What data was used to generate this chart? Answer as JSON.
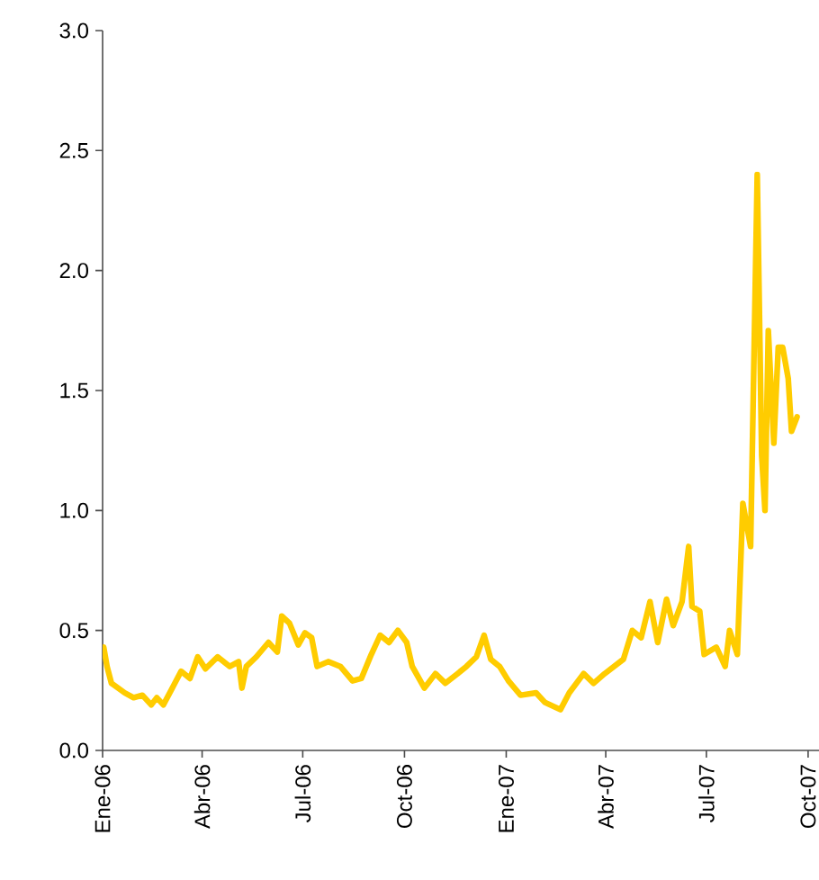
{
  "chart_data": {
    "type": "line",
    "x": [
      "2006-01-02",
      "2006-01-05",
      "2006-01-09",
      "2006-01-21",
      "2006-01-29",
      "2006-02-06",
      "2006-02-14",
      "2006-02-19",
      "2006-02-25",
      "2006-03-05",
      "2006-03-13",
      "2006-03-21",
      "2006-03-28",
      "2006-04-04",
      "2006-04-15",
      "2006-04-26",
      "2006-05-04",
      "2006-05-07",
      "2006-05-11",
      "2006-05-20",
      "2006-05-31",
      "2006-06-08",
      "2006-06-12",
      "2006-06-19",
      "2006-06-27",
      "2006-07-03",
      "2006-07-09",
      "2006-07-14",
      "2006-07-24",
      "2006-08-04",
      "2006-08-15",
      "2006-08-23",
      "2006-09-01",
      "2006-09-09",
      "2006-09-17",
      "2006-09-25",
      "2006-10-03",
      "2006-10-08",
      "2006-10-19",
      "2006-10-29",
      "2006-11-07",
      "2006-11-18",
      "2006-11-26",
      "2006-12-05",
      "2006-12-12",
      "2006-12-18",
      "2006-12-26",
      "2007-01-03",
      "2007-01-14",
      "2007-01-28",
      "2007-02-05",
      "2007-02-19",
      "2007-02-27",
      "2007-03-12",
      "2007-03-21",
      "2007-03-31",
      "2007-04-17",
      "2007-04-25",
      "2007-05-03",
      "2007-05-11",
      "2007-05-18",
      "2007-05-26",
      "2007-06-01",
      "2007-06-09",
      "2007-06-15",
      "2007-06-18",
      "2007-06-25",
      "2007-06-29",
      "2007-07-10",
      "2007-07-18",
      "2007-07-22",
      "2007-07-29",
      "2007-08-03",
      "2007-08-10",
      "2007-08-16",
      "2007-08-20",
      "2007-08-23",
      "2007-08-26",
      "2007-08-31",
      "2007-09-04",
      "2007-09-08",
      "2007-09-13",
      "2007-09-16",
      "2007-09-21"
    ],
    "series": [
      {
        "color": "#ffcc00",
        "values": [
          0.43,
          0.35,
          0.28,
          0.24,
          0.22,
          0.23,
          0.19,
          0.22,
          0.19,
          0.26,
          0.33,
          0.3,
          0.39,
          0.34,
          0.39,
          0.35,
          0.37,
          0.26,
          0.35,
          0.39,
          0.45,
          0.41,
          0.56,
          0.53,
          0.44,
          0.49,
          0.47,
          0.35,
          0.37,
          0.35,
          0.29,
          0.3,
          0.4,
          0.48,
          0.45,
          0.5,
          0.45,
          0.35,
          0.26,
          0.32,
          0.28,
          0.32,
          0.35,
          0.39,
          0.48,
          0.38,
          0.35,
          0.29,
          0.23,
          0.24,
          0.2,
          0.17,
          0.24,
          0.32,
          0.28,
          0.32,
          0.38,
          0.5,
          0.47,
          0.62,
          0.45,
          0.63,
          0.52,
          0.62,
          0.85,
          0.6,
          0.58,
          0.4,
          0.43,
          0.35,
          0.5,
          0.4,
          1.03,
          0.85,
          2.4,
          1.23,
          1.0,
          1.75,
          1.28,
          1.68,
          1.68,
          1.55,
          1.33,
          1.39
        ]
      }
    ],
    "xlim": [
      "2006-01-01",
      "2007-10-19"
    ],
    "xticks": [
      {
        "value": "2006-01-01",
        "label": "Ene-06"
      },
      {
        "value": "2006-04-01",
        "label": "Abr-06"
      },
      {
        "value": "2006-07-01",
        "label": "Jul-06"
      },
      {
        "value": "2006-10-01",
        "label": "Oct-06"
      },
      {
        "value": "2007-01-01",
        "label": "Ene-07"
      },
      {
        "value": "2007-04-01",
        "label": "Abr-07"
      },
      {
        "value": "2007-07-01",
        "label": "Jul-07"
      },
      {
        "value": "2007-10-01",
        "label": "Oct-07"
      }
    ],
    "ylim": [
      0,
      3
    ],
    "yticks": [
      {
        "value": 0,
        "label": "0.0"
      },
      {
        "value": 0.5,
        "label": "0.5"
      },
      {
        "value": 1,
        "label": "1.0"
      },
      {
        "value": 1.5,
        "label": "1.5"
      },
      {
        "value": 2,
        "label": "2.0"
      },
      {
        "value": 2.5,
        "label": "2.5"
      },
      {
        "value": 3,
        "label": "3.0"
      }
    ],
    "marker": "none",
    "line_style": "solid"
  }
}
